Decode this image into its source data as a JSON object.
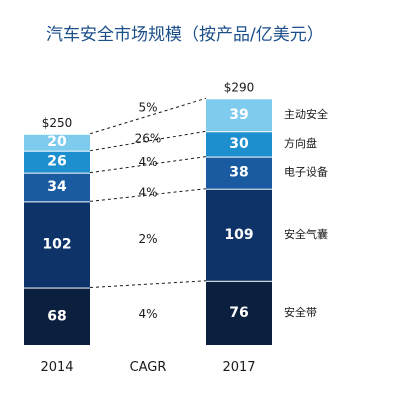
{
  "chart_data": {
    "type": "bar",
    "stacked": true,
    "title": "汽车安全市场规模（按产品/亿美元）",
    "categories": [
      "2014",
      "2017"
    ],
    "cagr_label": "CAGR",
    "totals": [
      "$250",
      "$290"
    ],
    "series": [
      {
        "name": "安全带",
        "values": [
          68,
          76
        ],
        "cagr": "4%",
        "color": "#0b1f3f"
      },
      {
        "name": "安全气囊",
        "values": [
          102,
          109
        ],
        "cagr": "2%",
        "color": "#0d3369"
      },
      {
        "name": "电子设备",
        "values": [
          34,
          38
        ],
        "cagr": "4%",
        "color": "#1a5aa0"
      },
      {
        "name": "方向盘",
        "values": [
          26,
          30
        ],
        "cagr": "4%",
        "color": "#1e8fce"
      },
      {
        "name": "主动安全",
        "values": [
          20,
          39
        ],
        "cagr": "26%",
        "color": "#7fcbee"
      }
    ],
    "top_cagr": "5%",
    "ylim": [
      0,
      290
    ]
  }
}
